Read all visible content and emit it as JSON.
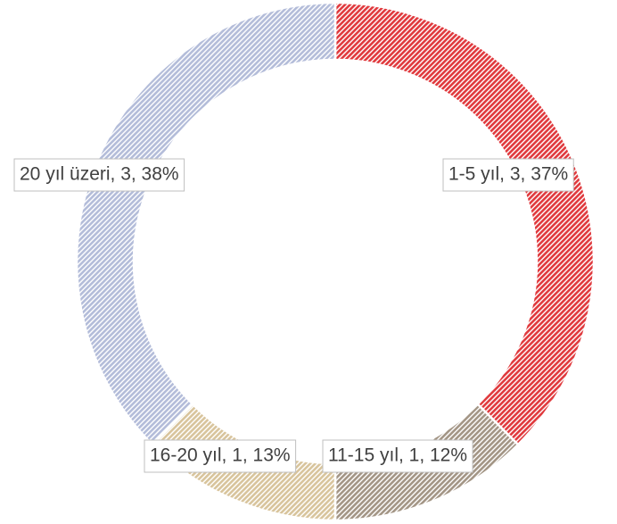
{
  "chart_data": {
    "type": "donut",
    "values": [
      3,
      1,
      1,
      3
    ],
    "value_labels": [
      "1-5 yıl, 3, 37%",
      "11-15 yıl, 1, 12%",
      "16-20 yıl, 1, 13%",
      "20 yıl üzeri, 3, 38%"
    ],
    "colors": [
      "#e0393d",
      "#a39585",
      "#d8c49c",
      "#b3bcd9"
    ]
  }
}
